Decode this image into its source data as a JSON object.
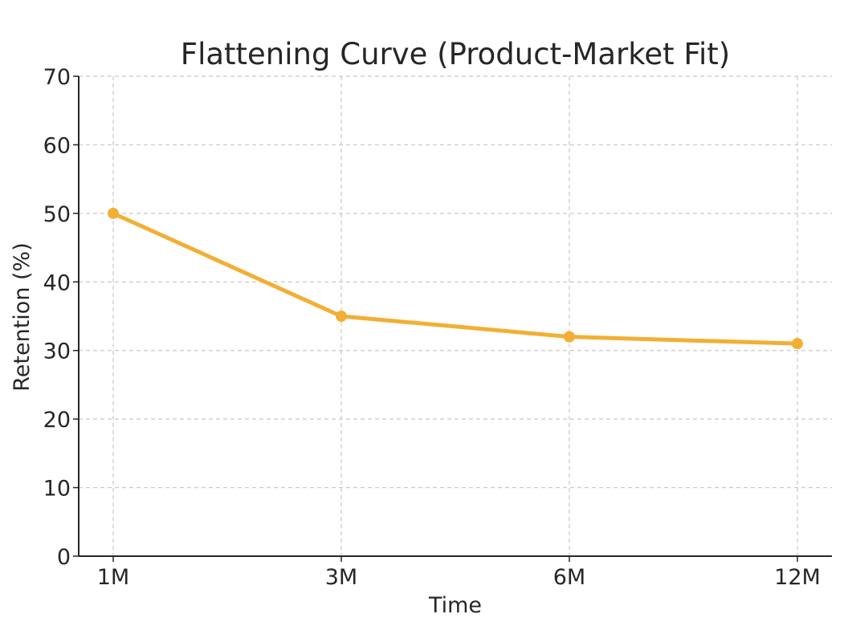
{
  "chart_data": {
    "type": "line",
    "title": "Flattening Curve (Product-Market Fit)",
    "xlabel": "Time",
    "ylabel": "Retention (%)",
    "categories": [
      "1M",
      "3M",
      "6M",
      "12M"
    ],
    "series": [
      {
        "values": [
          50,
          35,
          32,
          31
        ]
      }
    ],
    "ylim": [
      0,
      70
    ],
    "yticks": [
      0,
      10,
      20,
      30,
      40,
      50,
      60,
      70
    ],
    "ytick_labels": [
      "0",
      "10",
      "20",
      "30",
      "40",
      "50",
      "60",
      "70"
    ],
    "grid": true,
    "line_color": "#F2AF34",
    "axis_color": "#262626",
    "grid_color": "#C8C8C8"
  }
}
